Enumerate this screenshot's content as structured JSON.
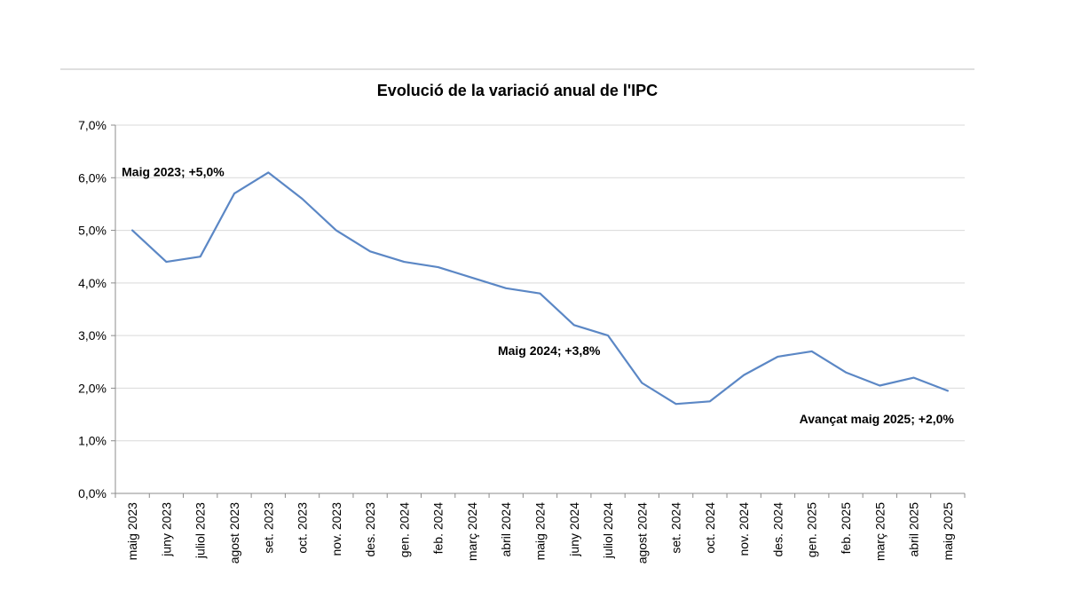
{
  "chart_data": {
    "type": "line",
    "title": "Evolució de la variació anual de l'IPC",
    "xlabel": "",
    "ylabel": "",
    "categories": [
      "maig 2023",
      "juny 2023",
      "juliol 2023",
      "agost 2023",
      "set. 2023",
      "oct. 2023",
      "nov. 2023",
      "des. 2023",
      "gen. 2024",
      "feb. 2024",
      "març 2024",
      "abril 2024",
      "maig 2024",
      "juny 2024",
      "juliol 2024",
      "agost 2024",
      "set. 2024",
      "oct. 2024",
      "nov. 2024",
      "des. 2024",
      "gen. 2025",
      "feb. 2025",
      "març 2025",
      "abril 2025",
      "maig 2025"
    ],
    "series": [
      {
        "values": [
          5.0,
          4.4,
          4.5,
          5.7,
          6.1,
          5.6,
          5.0,
          4.6,
          4.4,
          4.3,
          4.1,
          3.9,
          3.8,
          3.2,
          3.0,
          2.1,
          1.7,
          1.75,
          2.25,
          2.6,
          2.7,
          2.3,
          2.05,
          2.2,
          1.95
        ],
        "color": "#5b87c5"
      }
    ],
    "ylim": [
      0,
      7
    ],
    "yticks": [
      "0,0%",
      "1,0%",
      "2,0%",
      "3,0%",
      "4,0%",
      "5,0%",
      "6,0%",
      "7,0%"
    ],
    "grid": true,
    "legend": "none",
    "annotations": [
      {
        "text": "Maig 2023; +5,0%",
        "x": "maig 2023",
        "y": 6.0
      },
      {
        "text": "Maig 2024;  +3,8%",
        "x": "maig 2024",
        "y": 2.6
      },
      {
        "text": "Avançat maig 2025; +2,0%",
        "x": "maig 2025",
        "y": 1.3
      }
    ]
  }
}
